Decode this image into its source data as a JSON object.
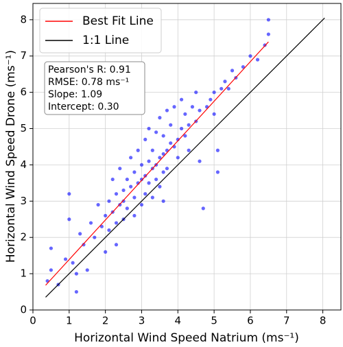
{
  "chart_data": {
    "type": "scatter",
    "x_label": "Horizontal Wind Speed Natrium (ms⁻¹)",
    "y_label": "Horizontal Wind Speed Drone (ms⁻¹)",
    "xlim": [
      0,
      8.5
    ],
    "ylim": [
      0,
      8.45
    ],
    "xticks": [
      0,
      1,
      2,
      3,
      4,
      5,
      6,
      7,
      8
    ],
    "yticks": [
      0,
      1,
      2,
      3,
      4,
      5,
      6,
      7,
      8
    ],
    "grid": true,
    "legend": "upper left",
    "points": {
      "color": "#0000ff",
      "x": [
        0.4,
        0.5,
        0.7,
        0.9,
        1.0,
        1.1,
        1.2,
        1.3,
        1.4,
        1.5,
        1.6,
        1.7,
        1.8,
        1.9,
        2.0,
        2.0,
        2.1,
        2.1,
        2.2,
        2.2,
        2.3,
        2.3,
        2.4,
        2.4,
        2.5,
        2.5,
        2.5,
        2.6,
        2.6,
        2.7,
        2.7,
        2.8,
        2.8,
        2.8,
        2.9,
        2.9,
        3.0,
        3.0,
        3.0,
        3.1,
        3.1,
        3.1,
        3.2,
        3.2,
        3.2,
        3.3,
        3.3,
        3.3,
        3.4,
        3.4,
        3.4,
        3.5,
        3.5,
        3.5,
        3.6,
        3.6,
        3.6,
        3.7,
        3.7,
        3.7,
        3.8,
        3.8,
        3.9,
        3.9,
        4.0,
        4.0,
        4.1,
        4.1,
        4.2,
        4.2,
        4.3,
        4.3,
        4.4,
        4.5,
        4.5,
        4.6,
        4.7,
        4.8,
        4.9,
        5.0,
        5.0,
        5.1,
        5.2,
        5.3,
        5.4,
        5.5,
        5.6,
        5.8,
        6.0,
        6.2,
        6.4,
        6.5,
        6.5,
        1.0,
        1.2,
        0.5,
        5.1,
        4.6,
        2.3,
        3.6
      ],
      "values": [
        0.8,
        1.7,
        0.7,
        1.4,
        3.2,
        1.3,
        0.5,
        2.1,
        1.8,
        1.1,
        2.4,
        2.0,
        2.9,
        2.3,
        2.6,
        1.6,
        3.0,
        2.2,
        2.7,
        3.6,
        2.4,
        3.2,
        2.9,
        3.9,
        3.3,
        2.5,
        3.0,
        3.6,
        2.8,
        3.4,
        4.2,
        3.1,
        3.8,
        2.6,
        3.5,
        4.4,
        3.6,
        2.9,
        4.0,
        3.7,
        4.7,
        3.2,
        4.1,
        3.5,
        5.0,
        3.9,
        4.4,
        3.1,
        4.0,
        4.9,
        3.6,
        4.2,
        5.3,
        3.4,
        4.3,
        4.8,
        3.8,
        4.4,
        5.5,
        3.9,
        4.6,
        5.1,
        4.5,
        5.6,
        4.7,
        4.2,
        5.0,
        5.8,
        4.8,
        5.4,
        5.1,
        4.4,
        5.6,
        5.2,
        6.0,
        5.5,
        2.8,
        5.6,
        5.8,
        6.0,
        5.4,
        3.8,
        6.1,
        6.3,
        6.1,
        6.6,
        6.4,
        6.7,
        7.0,
        6.9,
        7.3,
        8.0,
        7.6,
        2.5,
        1.0,
        1.1,
        4.4,
        4.1,
        1.8,
        3.0
      ]
    },
    "series": [
      {
        "name": "Best Fit Line",
        "color": "#ff0000",
        "x": [
          0.35,
          6.5
        ],
        "values": [
          0.68,
          7.39
        ]
      },
      {
        "name": "1:1 Line",
        "color": "#000000",
        "x": [
          0.35,
          8.05
        ],
        "values": [
          0.35,
          8.05
        ]
      }
    ],
    "annotations": [
      "Pearson's R: 0.91",
      "RMSE: 0.78 ms⁻¹",
      "Slope: 1.09",
      "Intercept: 0.30"
    ]
  }
}
